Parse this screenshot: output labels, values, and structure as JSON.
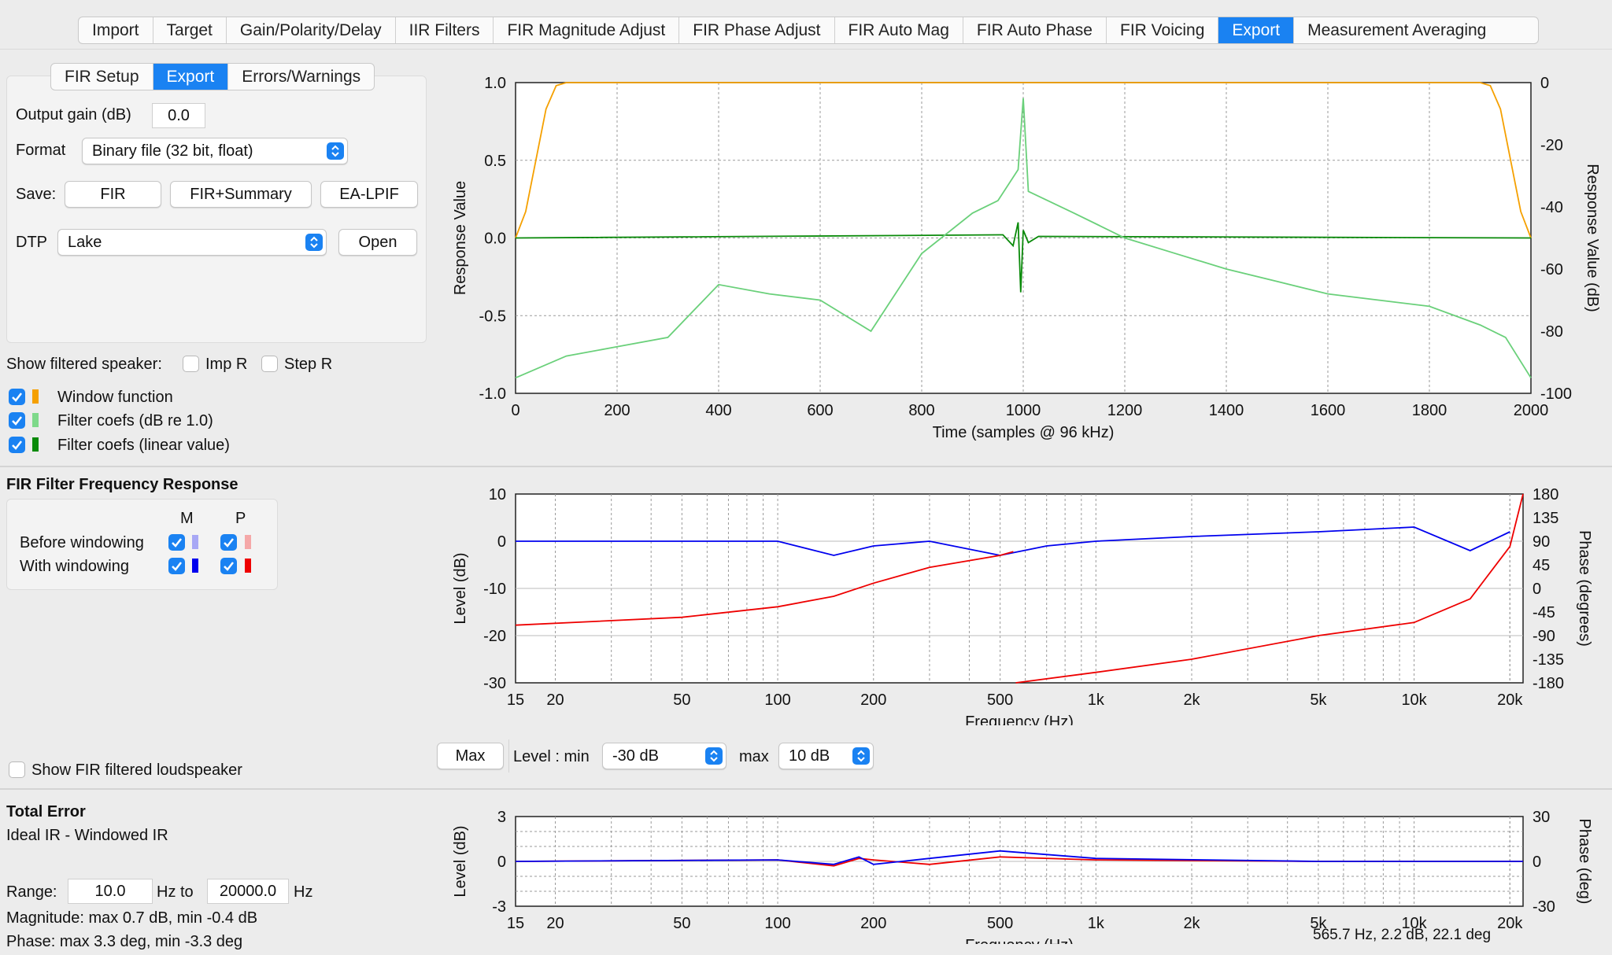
{
  "main_tabs": [
    "Import",
    "Target",
    "Gain/Polarity/Delay",
    "IIR Filters",
    "FIR Magnitude Adjust",
    "FIR Phase Adjust",
    "FIR Auto Mag",
    "FIR Auto Phase",
    "FIR Voicing",
    "Export",
    "Measurement Averaging"
  ],
  "main_tab_selected": "Export",
  "sub_tabs": [
    "FIR Setup",
    "Export",
    "Errors/Warnings"
  ],
  "sub_tab_selected": "Export",
  "export": {
    "output_gain_label": "Output gain (dB)",
    "output_gain_value": "0.0",
    "format_label": "Format",
    "format_value": "Binary file (32 bit, float)",
    "save_label": "Save:",
    "save_buttons": [
      "FIR",
      "FIR+Summary",
      "EA-LPIF"
    ],
    "dtp_label": "DTP",
    "dtp_value": "Lake",
    "open_label": "Open"
  },
  "show_filtered_speaker": {
    "label": "Show filtered speaker:",
    "imp_r": "Imp R",
    "step_r": "Step R",
    "imp_r_checked": false,
    "step_r_checked": false
  },
  "legend_top": [
    {
      "label": "Window function",
      "checked": true,
      "color": "#f5a000"
    },
    {
      "label": "Filter coefs (dB re 1.0)",
      "checked": true,
      "color": "#7ed98a"
    },
    {
      "label": "Filter coefs (linear value)",
      "checked": true,
      "color": "#0a8a0a"
    }
  ],
  "freq_response": {
    "title": "FIR Filter Frequency Response",
    "col_m": "M",
    "col_p": "P",
    "rows": [
      {
        "label": "Before windowing",
        "m_checked": true,
        "p_checked": true,
        "m_color": "#a8a8f5",
        "p_color": "#f5a8a8"
      },
      {
        "label": "With windowing",
        "m_checked": true,
        "p_checked": true,
        "m_color": "#0000ee",
        "p_color": "#ee0000"
      }
    ]
  },
  "level_controls": {
    "max_button": "Max",
    "level_min_label": "Level : min",
    "level_min_value": "-30 dB",
    "max_label": "max",
    "level_max_value": "10 dB"
  },
  "show_fir_loudspeaker": {
    "label": "Show FIR filtered loudspeaker",
    "checked": false
  },
  "total_error": {
    "title": "Total Error",
    "subtitle": "Ideal IR - Windowed IR",
    "range_label": "Range:",
    "range_from": "10.0",
    "hz_to": "Hz to",
    "range_to": "20000.0",
    "hz": "Hz",
    "magnitude_line": "Magnitude: max  0.7 dB, min -0.4 dB",
    "phase_line": "Phase: max  3.3 deg, min -3.3 deg"
  },
  "status_readout": "565.7 Hz,   2.2 dB,  22.1 deg",
  "chart_data": [
    {
      "type": "line",
      "xlabel": "Time (samples @ 96 kHz)",
      "ylabel": "Response Value",
      "y2label": "Response Value (dB)",
      "xlim": [
        0,
        2000
      ],
      "ylim": [
        -1.0,
        1.0
      ],
      "y2lim": [
        -100,
        0
      ],
      "x_ticks": [
        0,
        200,
        400,
        600,
        800,
        1000,
        1200,
        1400,
        1600,
        1800,
        2000
      ],
      "y_ticks": [
        "-1.0",
        "-0.5",
        "0.0",
        "0.5",
        "1.0"
      ],
      "y2_ticks": [
        "-100",
        "-80",
        "-60",
        "-40",
        "-20",
        "0"
      ],
      "grid": true,
      "series": [
        {
          "color": "#f5a000",
          "x": [
            0,
            20,
            40,
            60,
            80,
            100,
            1900,
            1920,
            1940,
            1960,
            1980,
            2000
          ],
          "y": [
            0,
            0.17,
            0.5,
            0.83,
            0.98,
            1,
            1,
            0.98,
            0.83,
            0.5,
            0.17,
            0
          ]
        },
        {
          "color": "#0a8a0a",
          "x": [
            0,
            960,
            980,
            990,
            995,
            1000,
            1010,
            1030,
            2000
          ],
          "y": [
            0,
            0.02,
            -0.05,
            0.1,
            -0.35,
            0.05,
            -0.03,
            0.01,
            0
          ]
        },
        {
          "color": "#6ad07a",
          "axis": "y2",
          "x": [
            0,
            100,
            200,
            300,
            400,
            500,
            600,
            700,
            800,
            900,
            950,
            990,
            1000,
            1010,
            1100,
            1200,
            1300,
            1400,
            1500,
            1600,
            1700,
            1800,
            1900,
            1950,
            2000
          ],
          "y": [
            -95,
            -88,
            -85,
            -82,
            -65,
            -68,
            -70,
            -80,
            -55,
            -42,
            -38,
            -28,
            -5,
            -35,
            -42,
            -50,
            -55,
            -60,
            -64,
            -68,
            -70,
            -72,
            -78,
            -82,
            -95
          ]
        }
      ]
    },
    {
      "type": "line",
      "xlabel": "Frequency (Hz)",
      "ylabel": "Level (dB)",
      "y2label": "Phase (degrees)",
      "xscale": "log",
      "xlim": [
        15,
        22000
      ],
      "ylim": [
        -30,
        10
      ],
      "y2lim": [
        -180,
        180
      ],
      "x_ticks": [
        "15",
        "20",
        "50",
        "100",
        "200",
        "500",
        "1k",
        "2k",
        "5k",
        "10k",
        "20k"
      ],
      "y_ticks": [
        "-30",
        "-20",
        "-10",
        "0",
        "10"
      ],
      "y2_ticks": [
        "-180",
        "-135",
        "-90",
        "-45",
        "0",
        "45",
        "90",
        "135",
        "180"
      ],
      "grid": true,
      "series": [
        {
          "color": "#0000ee",
          "x": [
            15,
            50,
            100,
            150,
            200,
            300,
            500,
            700,
            1000,
            2000,
            5000,
            10000,
            15000,
            20000
          ],
          "y": [
            0,
            0,
            0,
            -3,
            -1,
            0,
            -3,
            -1,
            0,
            1,
            2,
            3,
            -2,
            2
          ]
        },
        {
          "color": "#ee0000",
          "axis": "y2",
          "x": [
            15,
            50,
            100,
            150,
            200,
            300,
            500,
            550,
            560,
            1000,
            2000,
            5000,
            10000,
            15000,
            20000,
            22000
          ],
          "y": [
            -70,
            -55,
            -35,
            -15,
            10,
            40,
            63,
            70,
            -180,
            -160,
            -135,
            -90,
            -65,
            -20,
            80,
            180
          ]
        }
      ]
    },
    {
      "type": "line",
      "xlabel": "Frequency (Hz)",
      "ylabel": "Level (dB)",
      "y2label": "Phase (deg)",
      "xscale": "log",
      "xlim": [
        15,
        22000
      ],
      "ylim": [
        -3,
        3
      ],
      "y2lim": [
        -30,
        30
      ],
      "x_ticks": [
        "15",
        "20",
        "50",
        "100",
        "200",
        "500",
        "1k",
        "2k",
        "5k",
        "10k",
        "20k"
      ],
      "y_ticks": [
        "-3",
        "0",
        "3"
      ],
      "y2_ticks": [
        "-30",
        "0",
        "30"
      ],
      "grid": true,
      "series": [
        {
          "color": "#ee0000",
          "x": [
            15,
            100,
            150,
            180,
            200,
            300,
            500,
            1000,
            5000,
            22000
          ],
          "y": [
            0,
            0.1,
            -0.3,
            0.2,
            0.1,
            -0.2,
            0.3,
            0.1,
            0,
            0
          ]
        },
        {
          "color": "#0000ee",
          "x": [
            15,
            100,
            150,
            180,
            200,
            300,
            500,
            1000,
            5000,
            22000
          ],
          "y": [
            0,
            0.1,
            -0.2,
            0.3,
            -0.2,
            0.2,
            0.7,
            0.2,
            0,
            0
          ]
        }
      ]
    }
  ]
}
